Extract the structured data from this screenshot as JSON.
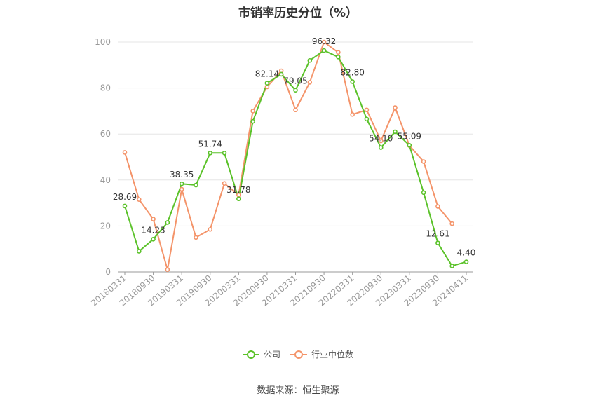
{
  "title": "市销率历史分位（%）",
  "source": "数据来源：恒生聚源",
  "colors": {
    "company": "#5bc22a",
    "industry": "#f4946a",
    "grid": "#e6e6e6",
    "axis": "#999999",
    "tick_text": "#999999"
  },
  "chart_data": {
    "type": "line",
    "ylim": [
      0,
      100
    ],
    "yticks": [
      0,
      20,
      40,
      60,
      80,
      100
    ],
    "grid": true,
    "legend_position": "bottom",
    "x_tick_labels": [
      "20180331",
      "20180930",
      "20190331",
      "20190930",
      "20200331",
      "20200930",
      "20210331",
      "20210930",
      "20220331",
      "20220930",
      "20230331",
      "20230930",
      "20240411"
    ],
    "series": [
      {
        "name": "公司",
        "values": [
          28.69,
          9.0,
          14.23,
          21.5,
          38.35,
          37.8,
          51.74,
          51.74,
          31.78,
          65.5,
          82.14,
          86.0,
          79.05,
          92.0,
          96.32,
          93.5,
          82.8,
          66.5,
          54.1,
          61.0,
          55.09,
          34.5,
          12.61,
          2.6,
          4.4
        ]
      },
      {
        "name": "行业中位数",
        "values": [
          52.0,
          31.5,
          23.0,
          1.0,
          36.0,
          15.0,
          18.5,
          38.5,
          33.5,
          70.0,
          80.5,
          87.5,
          70.5,
          82.5,
          100.0,
          95.5,
          68.5,
          70.5,
          57.0,
          71.5,
          55.0,
          48.0,
          28.5,
          21.0,
          null
        ]
      }
    ],
    "annotations": [
      {
        "series": 0,
        "index": 0,
        "text": "28.69"
      },
      {
        "series": 0,
        "index": 2,
        "text": "14.23"
      },
      {
        "series": 0,
        "index": 4,
        "text": "38.35"
      },
      {
        "series": 0,
        "index": 6,
        "text": "51.74"
      },
      {
        "series": 0,
        "index": 8,
        "text": "31.78"
      },
      {
        "series": 0,
        "index": 10,
        "text": "82.14"
      },
      {
        "series": 0,
        "index": 12,
        "text": "79.05"
      },
      {
        "series": 0,
        "index": 14,
        "text": "96.32"
      },
      {
        "series": 0,
        "index": 16,
        "text": "82.80"
      },
      {
        "series": 0,
        "index": 18,
        "text": "54.10"
      },
      {
        "series": 0,
        "index": 20,
        "text": "55.09"
      },
      {
        "series": 0,
        "index": 22,
        "text": "12.61"
      },
      {
        "series": 0,
        "index": 24,
        "text": "4.40"
      }
    ]
  }
}
